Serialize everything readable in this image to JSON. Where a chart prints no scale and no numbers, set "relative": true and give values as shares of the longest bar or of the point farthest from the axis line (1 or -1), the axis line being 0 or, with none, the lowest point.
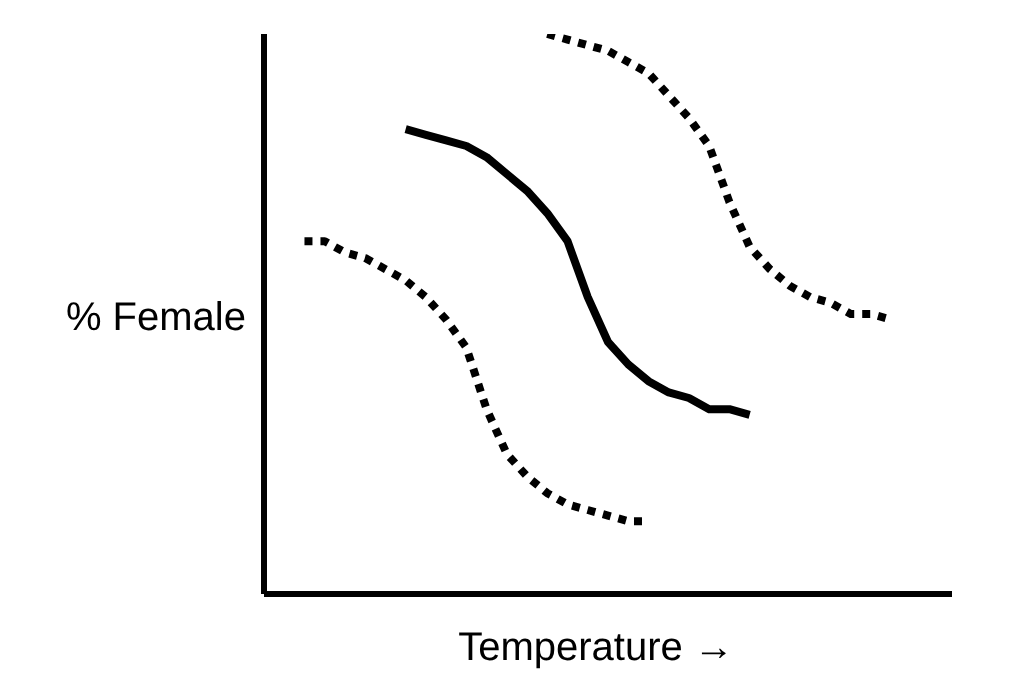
{
  "chart_data": {
    "type": "line",
    "xlabel": "Temperature →",
    "ylabel": "% Female",
    "relative": true,
    "categories": [
      null,
      null,
      null,
      null,
      null,
      null,
      null,
      null,
      null,
      null,
      null,
      null,
      null,
      null,
      null,
      null,
      null,
      null,
      null,
      null,
      null,
      null,
      null,
      null,
      null,
      null,
      null,
      null,
      null,
      null,
      null,
      null,
      null,
      null,
      null
    ],
    "series": [
      {
        "color": "#000000",
        "line_style": "dotted",
        "values": [
          null,
          null,
          0.63,
          0.63,
          0.61,
          0.6,
          0.58,
          0.56,
          0.53,
          0.49,
          0.44,
          0.33,
          0.25,
          0.21,
          0.18,
          0.16,
          0.15,
          0.14,
          0.13,
          0.13,
          null,
          null,
          null,
          null,
          null,
          null,
          null,
          null,
          null,
          null,
          null,
          null,
          null,
          null,
          null
        ]
      },
      {
        "color": "#000000",
        "line_style": "solid",
        "values": [
          null,
          null,
          null,
          null,
          null,
          null,
          null,
          0.83,
          0.82,
          0.81,
          0.8,
          0.78,
          0.75,
          0.72,
          0.68,
          0.63,
          0.53,
          0.45,
          0.41,
          0.38,
          0.36,
          0.35,
          0.33,
          0.33,
          0.32,
          null,
          null,
          null,
          null,
          null,
          null,
          null,
          null,
          null,
          null
        ]
      },
      {
        "color": "#000000",
        "line_style": "dotted",
        "values": [
          null,
          null,
          null,
          null,
          null,
          null,
          null,
          null,
          null,
          null,
          null,
          null,
          null,
          null,
          1.0,
          0.99,
          0.98,
          0.97,
          0.95,
          0.93,
          0.89,
          0.85,
          0.8,
          0.7,
          0.62,
          0.58,
          0.55,
          0.53,
          0.52,
          0.5,
          0.5,
          0.49,
          null,
          null,
          null
        ]
      }
    ]
  }
}
